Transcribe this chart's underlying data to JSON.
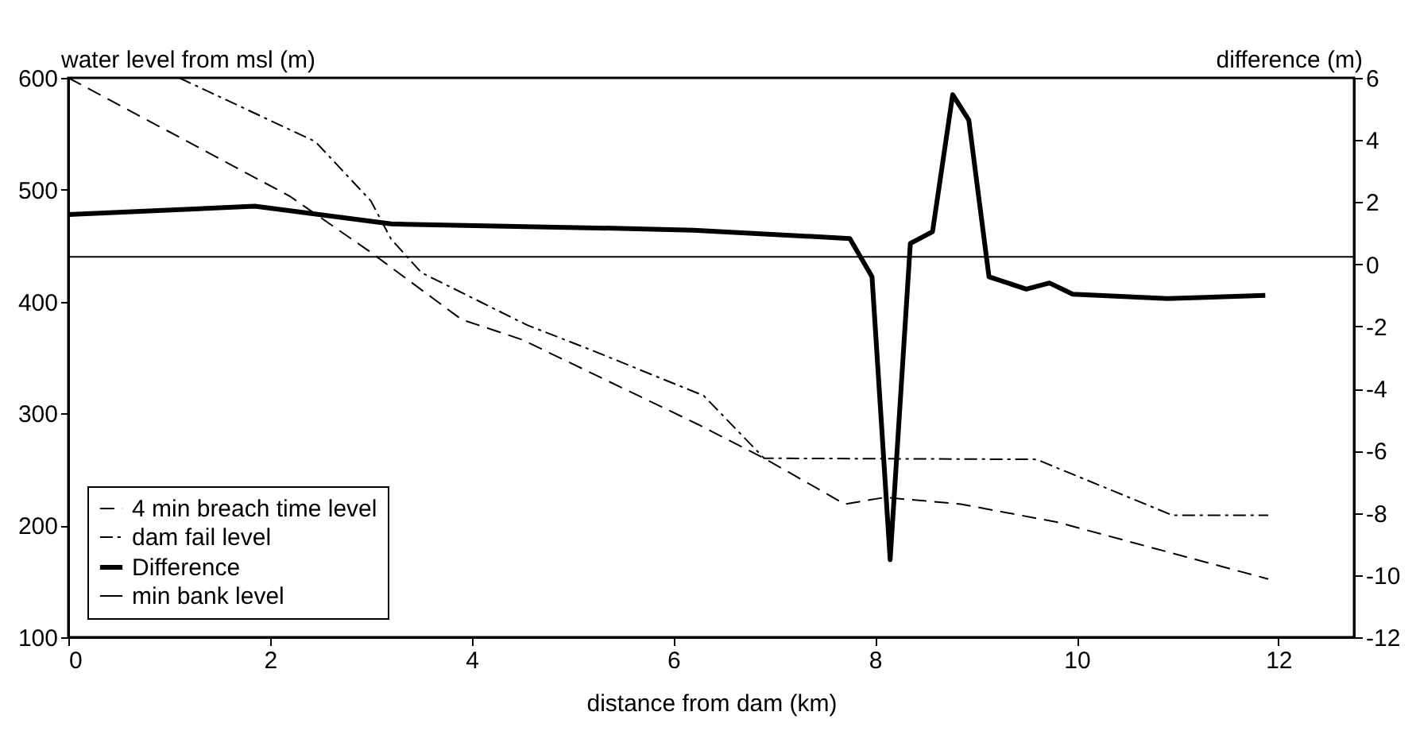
{
  "chart_data": {
    "type": "line",
    "xlabel": "distance from dam (km)",
    "ylabel": "water level from msl (m)",
    "y2label": "difference (m)",
    "xlim": [
      0,
      12.75
    ],
    "xticks": [
      0,
      2,
      4,
      6,
      8,
      10,
      12
    ],
    "ylim": [
      100,
      600
    ],
    "yticks": [
      100,
      200,
      300,
      400,
      500,
      600
    ],
    "y2lim": [
      -12,
      6
    ],
    "y2ticks": [
      -12,
      -10,
      -8,
      -6,
      -4,
      -2,
      0,
      2,
      4,
      6
    ],
    "grid": false,
    "legend": "bottom left",
    "marker": "none",
    "series": [
      {
        "name": "4 min breach time level",
        "color": "#000000",
        "line_style": "dashed",
        "x": [
          0,
          2.2,
          3.0,
          3.9,
          4.5,
          6.25,
          6.9,
          7.7,
          8.1,
          8.85,
          9.8,
          11.9
        ],
        "values": [
          600,
          494,
          444,
          384,
          366,
          290,
          260,
          219,
          225,
          219,
          203,
          152
        ]
      },
      {
        "name": "dam fail level",
        "color": "#000000",
        "line_style": "dotted",
        "x": [
          1.1,
          2.45,
          3.0,
          3.2,
          3.5,
          4.55,
          5.15,
          6.3,
          6.9,
          9.6,
          10.95,
          11.9
        ],
        "values": [
          600,
          543,
          490,
          456,
          426,
          379,
          358,
          316,
          260,
          259,
          209,
          209
        ]
      },
      {
        "name": "Difference",
        "color": "#000000",
        "line_style": "solid",
        "axis": "y2",
        "x": [
          0,
          1.85,
          3.2,
          5.4,
          6.2,
          7.75,
          7.97,
          8.15,
          8.35,
          8.57,
          8.77,
          8.93,
          9.13,
          9.5,
          9.73,
          9.96,
          10.9,
          11.87
        ],
        "values": [
          1.6,
          1.87,
          1.3,
          1.16,
          1.1,
          0.83,
          -0.4,
          -9.5,
          0.67,
          1.05,
          5.46,
          4.64,
          -0.4,
          -0.8,
          -0.6,
          -0.96,
          -1.1,
          -1.0
        ]
      },
      {
        "name": "min bank level",
        "color": "#000000",
        "line_style": "solid",
        "x": [
          0,
          12.75
        ],
        "values": [
          440,
          440
        ]
      }
    ]
  }
}
